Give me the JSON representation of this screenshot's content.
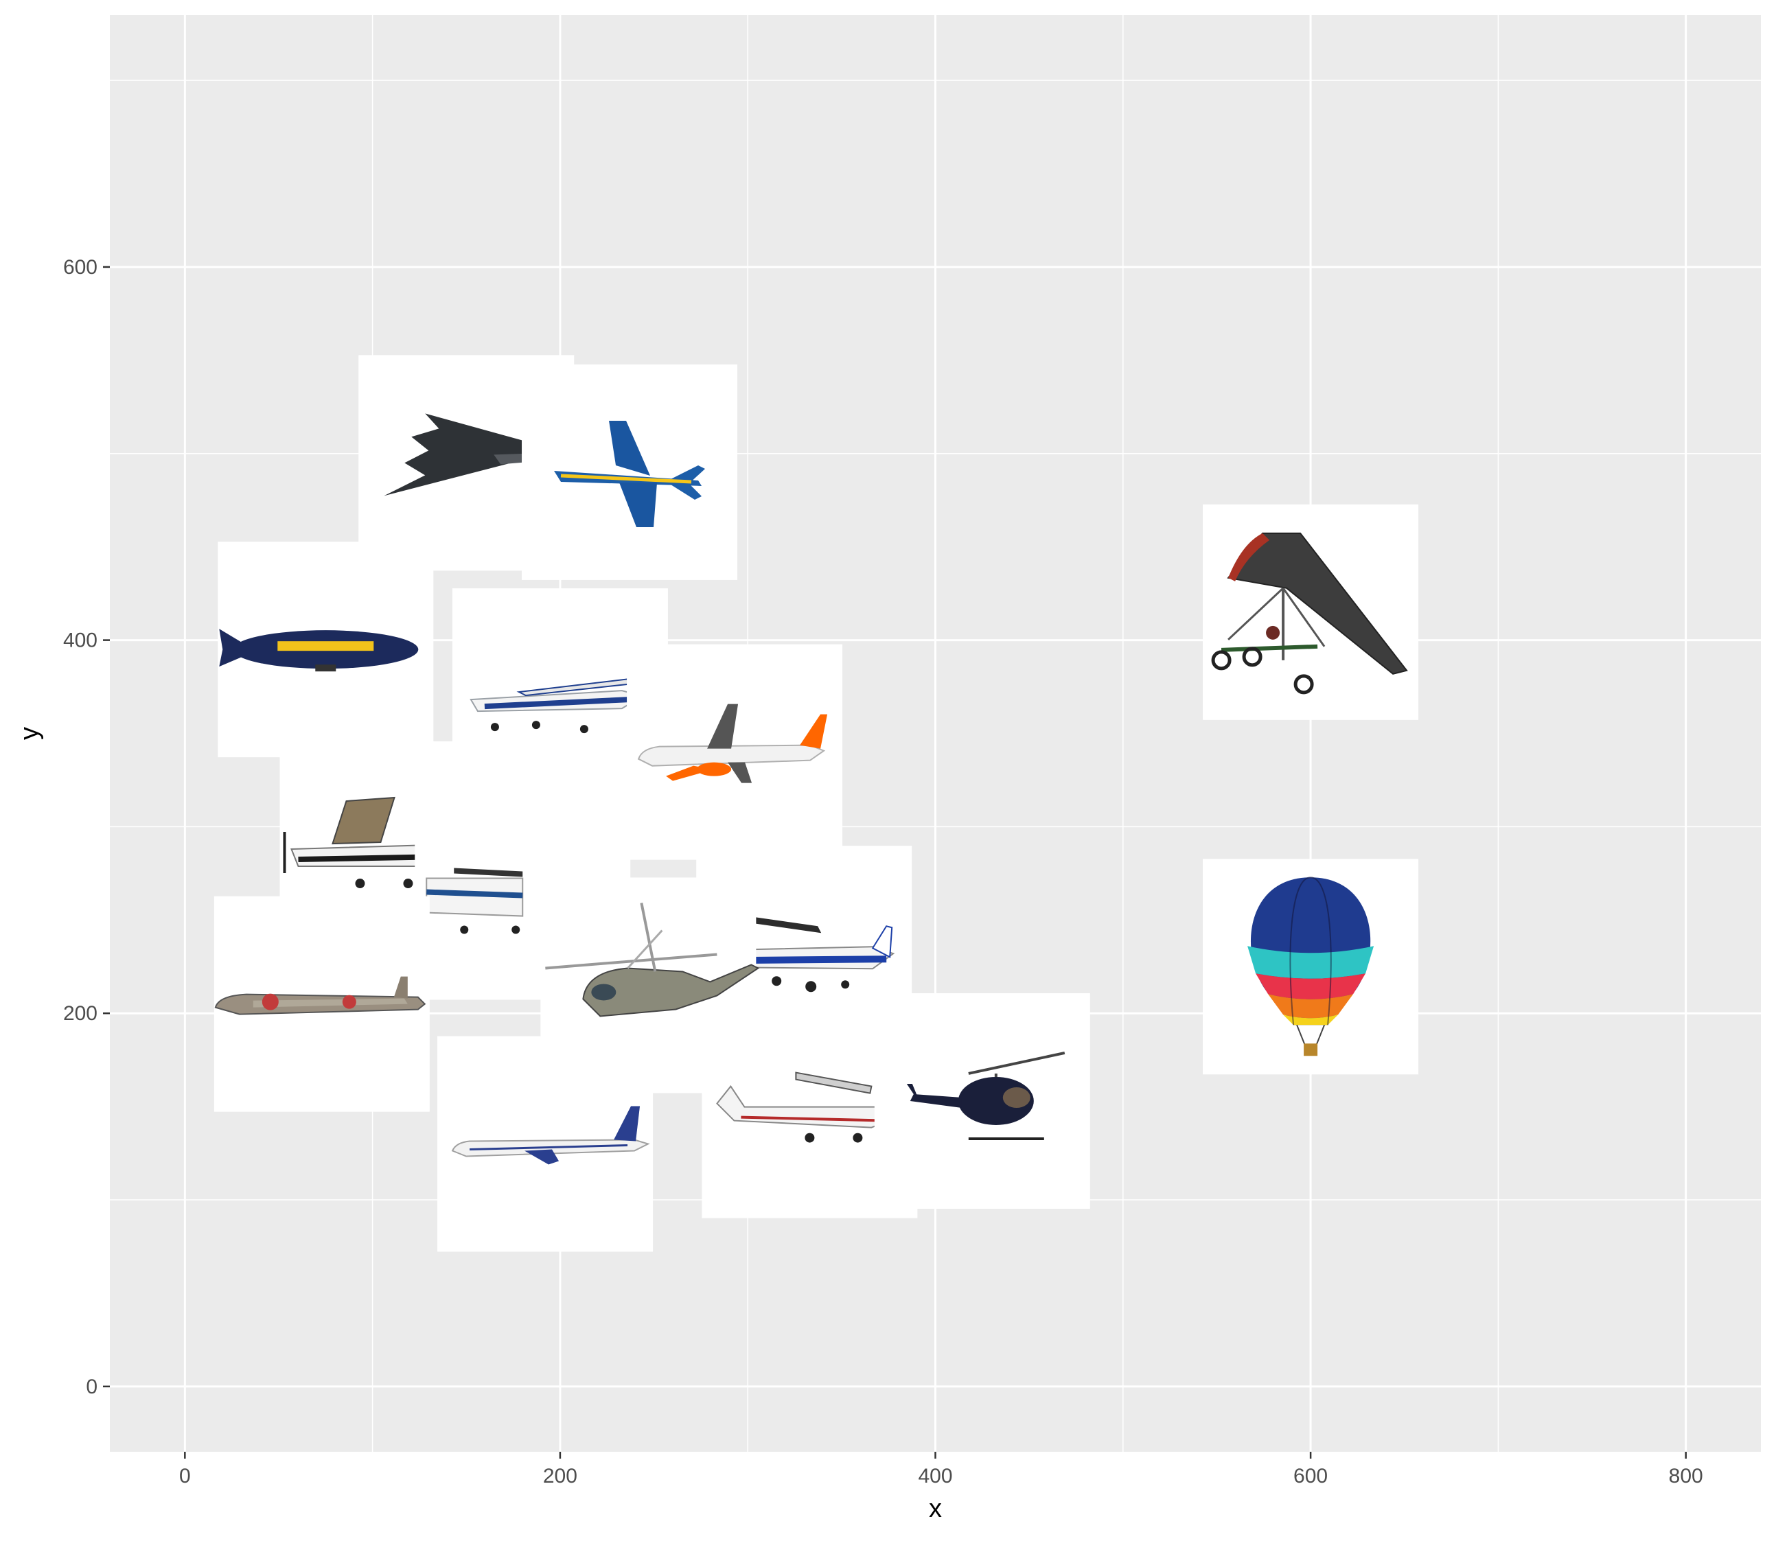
{
  "chart_data": {
    "type": "scatter",
    "title": "",
    "xlabel": "x",
    "ylabel": "y",
    "xlim": [
      -40,
      840
    ],
    "ylim": [
      -35,
      735
    ],
    "x_ticks": [
      0,
      200,
      400,
      600,
      800
    ],
    "y_ticks": [
      0,
      200,
      400,
      600
    ],
    "x_tick_labels": [
      "0",
      "200",
      "400",
      "600",
      "800"
    ],
    "y_tick_labels": [
      "0",
      "200",
      "400",
      "600"
    ],
    "grid": true,
    "legend": "none",
    "points": [
      {
        "x": 150,
        "y": 495,
        "icon": "stealth-bomber-icon"
      },
      {
        "x": 237,
        "y": 490,
        "icon": "fighter-jet-icon"
      },
      {
        "x": 75,
        "y": 395,
        "icon": "blimp-icon"
      },
      {
        "x": 200,
        "y": 370,
        "icon": "cessna-blue-icon"
      },
      {
        "x": 293,
        "y": 340,
        "icon": "airliner-orange-icon"
      },
      {
        "x": 108,
        "y": 288,
        "icon": "cessna-propeller-icon"
      },
      {
        "x": 180,
        "y": 265,
        "icon": "cessna-partial-icon"
      },
      {
        "x": 330,
        "y": 232,
        "icon": "cessna-blue-stripe-icon"
      },
      {
        "x": 247,
        "y": 215,
        "icon": "helicopter-large-icon"
      },
      {
        "x": 73,
        "y": 205,
        "icon": "vintage-jet-icon"
      },
      {
        "x": 600,
        "y": 415,
        "icon": "hang-glider-trike-icon"
      },
      {
        "x": 600,
        "y": 225,
        "icon": "hot-air-balloon-icon"
      },
      {
        "x": 192,
        "y": 130,
        "icon": "airliner-blue-icon"
      },
      {
        "x": 333,
        "y": 148,
        "icon": "cessna-white-icon"
      },
      {
        "x": 425,
        "y": 153,
        "icon": "helicopter-small-icon"
      }
    ]
  },
  "colors": {
    "panel_background": "#ebebeb",
    "grid_major": "#ffffff",
    "tick_color": "#333333",
    "tick_label_color": "#4d4d4d"
  }
}
